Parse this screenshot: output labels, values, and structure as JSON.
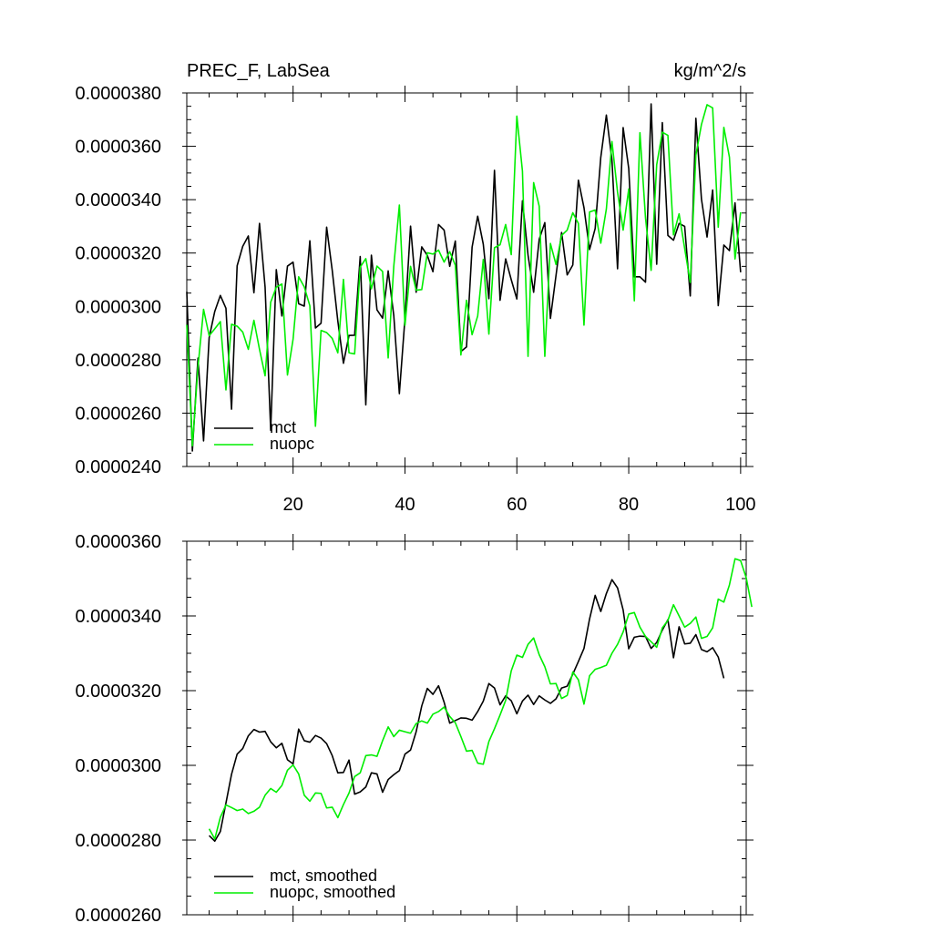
{
  "colors": {
    "mct": "#000000",
    "nuopc": "#00ee00",
    "axis": "#000000",
    "background": "#ffffff"
  },
  "chart_data": [
    {
      "type": "line",
      "title": "PREC_F, LabSea",
      "units": "kg/m^2/s",
      "xlim": [
        1,
        101
      ],
      "ylim": [
        2.4e-05,
        3.8e-05
      ],
      "x_ticks": [
        20,
        40,
        60,
        80,
        100
      ],
      "x_tick_labels": [
        "20",
        "40",
        "60",
        "80",
        "100"
      ],
      "y_ticks": [
        2.4e-05,
        2.6e-05,
        2.8e-05,
        3e-05,
        3.2e-05,
        3.4e-05,
        3.6e-05,
        3.8e-05
      ],
      "y_tick_labels": [
        "0.0000240",
        "0.0000260",
        "0.0000280",
        "0.0000300",
        "0.0000320",
        "0.0000340",
        "0.0000360",
        "0.0000380"
      ],
      "legend": "bottom-left",
      "series": [
        {
          "name": "mct",
          "color_key": "mct",
          "values": [
            3.055e-05,
            2.458e-05,
            2.806e-05,
            2.496e-05,
            2.883e-05,
            2.981e-05,
            3.041e-05,
            2.993e-05,
            2.615e-05,
            3.152e-05,
            3.225e-05,
            3.264e-05,
            3.051e-05,
            3.311e-05,
            3.072e-05,
            2.536e-05,
            3.138e-05,
            2.964e-05,
            3.151e-05,
            3.166e-05,
            3.01e-05,
            3.001e-05,
            3.246e-05,
            2.919e-05,
            2.937e-05,
            3.297e-05,
            3.135e-05,
            2.945e-05,
            2.787e-05,
            2.891e-05,
            2.892e-05,
            3.187e-05,
            2.631e-05,
            3.192e-05,
            2.987e-05,
            2.956e-05,
            3.133e-05,
            2.966e-05,
            2.673e-05,
            2.955e-05,
            3.301e-05,
            3.053e-05,
            3.223e-05,
            3.191e-05,
            3.13e-05,
            3.307e-05,
            3.286e-05,
            3.15e-05,
            3.245e-05,
            2.831e-05,
            2.848e-05,
            3.222e-05,
            3.338e-05,
            3.233e-05,
            3.029e-05,
            3.51e-05,
            3.023e-05,
            3.178e-05,
            3.1e-05,
            3.028e-05,
            3.396e-05,
            3.192e-05,
            3.053e-05,
            3.252e-05,
            3.314e-05,
            2.955e-05,
            3.116e-05,
            3.277e-05,
            3.118e-05,
            3.155e-05,
            3.473e-05,
            3.37e-05,
            3.213e-05,
            3.292e-05,
            3.558e-05,
            3.717e-05,
            3.549e-05,
            3.141e-05,
            3.67e-05,
            3.517e-05,
            3.111e-05,
            3.111e-05,
            3.091e-05,
            3.759e-05,
            3.158e-05,
            3.689e-05,
            3.266e-05,
            3.248e-05,
            3.311e-05,
            3.3e-05,
            3.039e-05,
            3.705e-05,
            3.402e-05,
            3.26e-05,
            3.436e-05,
            3.003e-05,
            3.23e-05,
            3.209e-05,
            3.388e-05,
            3.128e-05
          ]
        },
        {
          "name": "nuopc",
          "color_key": "nuopc",
          "values": [
            2.931e-05,
            2.478e-05,
            2.772e-05,
            2.989e-05,
            2.89e-05,
            2.916e-05,
            2.943e-05,
            2.687e-05,
            2.933e-05,
            2.926e-05,
            2.904e-05,
            2.839e-05,
            2.948e-05,
            2.839e-05,
            2.74e-05,
            3.016e-05,
            3.072e-05,
            3.084e-05,
            2.743e-05,
            2.877e-05,
            3.111e-05,
            3.073e-05,
            3.002e-05,
            2.551e-05,
            2.91e-05,
            2.902e-05,
            2.88e-05,
            2.826e-05,
            3.101e-05,
            2.826e-05,
            2.822e-05,
            3.147e-05,
            3.179e-05,
            3.066e-05,
            3.151e-05,
            3.131e-05,
            2.807e-05,
            3.15e-05,
            3.38e-05,
            2.929e-05,
            3.15e-05,
            3.061e-05,
            3.063e-05,
            3.201e-05,
            3.196e-05,
            3.211e-05,
            3.166e-05,
            3.205e-05,
            3.155e-05,
            2.818e-05,
            3.023e-05,
            2.894e-05,
            2.964e-05,
            3.176e-05,
            2.896e-05,
            3.22e-05,
            3.231e-05,
            3.307e-05,
            3.194e-05,
            3.713e-05,
            3.507e-05,
            2.813e-05,
            3.464e-05,
            3.375e-05,
            2.813e-05,
            3.236e-05,
            3.157e-05,
            3.266e-05,
            3.286e-05,
            3.351e-05,
            3.311e-05,
            2.93e-05,
            3.354e-05,
            3.361e-05,
            3.237e-05,
            3.365e-05,
            3.618e-05,
            3.428e-05,
            3.286e-05,
            3.44e-05,
            3.021e-05,
            3.651e-05,
            3.331e-05,
            3.135e-05,
            3.531e-05,
            3.653e-05,
            3.641e-05,
            3.268e-05,
            3.347e-05,
            3.217e-05,
            3.09e-05,
            3.567e-05,
            3.682e-05,
            3.756e-05,
            3.744e-05,
            3.297e-05,
            3.671e-05,
            3.559e-05,
            3.178e-05,
            3.353e-05
          ]
        }
      ]
    },
    {
      "type": "line",
      "title": "",
      "units": "",
      "xlim": [
        1,
        101
      ],
      "ylim": [
        2.6e-05,
        3.6e-05
      ],
      "x_ticks": [
        20,
        40,
        60,
        80,
        100
      ],
      "x_tick_labels": [],
      "y_ticks": [
        2.6e-05,
        2.8e-05,
        3e-05,
        3.2e-05,
        3.4e-05,
        3.6e-05
      ],
      "y_tick_labels": [
        "0.0000260",
        "0.0000280",
        "0.0000300",
        "0.0000320",
        "0.0000340",
        "0.0000360"
      ],
      "legend": "bottom-left",
      "series": [
        {
          "name": "mct, smoothed",
          "color_key": "mct",
          "x_start": 5,
          "values": [
            2.812e-05,
            2.797e-05,
            2.823e-05,
            2.899e-05,
            2.976e-05,
            3.03e-05,
            3.045e-05,
            3.079e-05,
            3.096e-05,
            3.089e-05,
            3.091e-05,
            3.063e-05,
            3.047e-05,
            3.059e-05,
            3.015e-05,
            3.004e-05,
            3.097e-05,
            3.066e-05,
            3.062e-05,
            3.08e-05,
            3.073e-05,
            3.058e-05,
            3.026e-05,
            2.98e-05,
            2.981e-05,
            3.014e-05,
            2.923e-05,
            2.929e-05,
            2.942e-05,
            2.98e-05,
            2.977e-05,
            2.928e-05,
            2.962e-05,
            2.975e-05,
            2.986e-05,
            3.03e-05,
            3.041e-05,
            3.09e-05,
            3.159e-05,
            3.206e-05,
            3.19e-05,
            3.213e-05,
            3.169e-05,
            3.113e-05,
            3.12e-05,
            3.127e-05,
            3.126e-05,
            3.121e-05,
            3.144e-05,
            3.172e-05,
            3.219e-05,
            3.207e-05,
            3.162e-05,
            3.186e-05,
            3.173e-05,
            3.138e-05,
            3.172e-05,
            3.188e-05,
            3.163e-05,
            3.186e-05,
            3.175e-05,
            3.166e-05,
            3.178e-05,
            3.207e-05,
            3.212e-05,
            3.244e-05,
            3.278e-05,
            3.313e-05,
            3.392e-05,
            3.455e-05,
            3.412e-05,
            3.46e-05,
            3.497e-05,
            3.475e-05,
            3.416e-05,
            3.312e-05,
            3.343e-05,
            3.346e-05,
            3.345e-05,
            3.313e-05,
            3.329e-05,
            3.362e-05,
            3.39e-05,
            3.288e-05,
            3.371e-05,
            3.325e-05,
            3.327e-05,
            3.35e-05,
            3.31e-05,
            3.304e-05,
            3.315e-05,
            3.29e-05,
            3.233e-05
          ]
        },
        {
          "name": "nuopc, smoothed",
          "color_key": "nuopc",
          "x_start": 5,
          "values": [
            2.83e-05,
            2.803e-05,
            2.861e-05,
            2.894e-05,
            2.887e-05,
            2.879e-05,
            2.883e-05,
            2.871e-05,
            2.877e-05,
            2.888e-05,
            2.92e-05,
            2.938e-05,
            2.928e-05,
            2.946e-05,
            2.987e-05,
            3.001e-05,
            2.977e-05,
            2.92e-05,
            2.904e-05,
            2.926e-05,
            2.925e-05,
            2.886e-05,
            2.888e-05,
            2.86e-05,
            2.895e-05,
            2.926e-05,
            2.97e-05,
            2.98e-05,
            3.026e-05,
            3.028e-05,
            3.024e-05,
            3.066e-05,
            3.103e-05,
            3.077e-05,
            3.094e-05,
            3.09e-05,
            3.086e-05,
            3.112e-05,
            3.119e-05,
            3.113e-05,
            3.137e-05,
            3.144e-05,
            3.156e-05,
            3.131e-05,
            3.114e-05,
            3.077e-05,
            3.038e-05,
            3.04e-05,
            3.006e-05,
            3.003e-05,
            3.064e-05,
            3.098e-05,
            3.135e-05,
            3.174e-05,
            3.253e-05,
            3.295e-05,
            3.289e-05,
            3.324e-05,
            3.341e-05,
            3.296e-05,
            3.264e-05,
            3.218e-05,
            3.219e-05,
            3.179e-05,
            3.187e-05,
            3.25e-05,
            3.229e-05,
            3.164e-05,
            3.24e-05,
            3.257e-05,
            3.262e-05,
            3.268e-05,
            3.3e-05,
            3.324e-05,
            3.357e-05,
            3.405e-05,
            3.409e-05,
            3.37e-05,
            3.345e-05,
            3.331e-05,
            3.316e-05,
            3.368e-05,
            3.388e-05,
            3.43e-05,
            3.4e-05,
            3.37e-05,
            3.38e-05,
            3.397e-05,
            3.34e-05,
            3.345e-05,
            3.368e-05,
            3.445e-05,
            3.437e-05,
            3.483e-05,
            3.553e-05,
            3.548e-05,
            3.502e-05,
            3.424e-05
          ]
        }
      ]
    }
  ]
}
